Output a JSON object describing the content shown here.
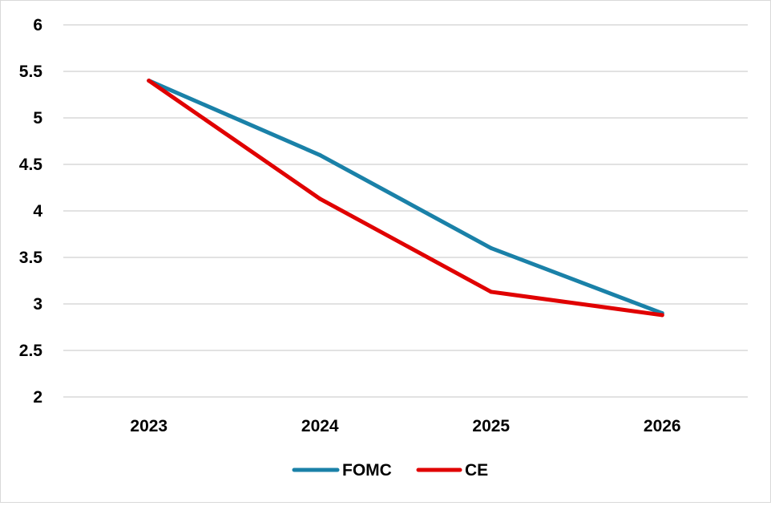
{
  "chart_data": {
    "type": "line",
    "title": "",
    "xlabel": "",
    "ylabel": "",
    "categories": [
      "2023",
      "2024",
      "2025",
      "2026"
    ],
    "ylim": [
      2,
      6
    ],
    "yticks": [
      "2",
      "2.5",
      "3",
      "3.5",
      "4",
      "4.5",
      "5",
      "5.5",
      "6"
    ],
    "grid": true,
    "legend_position": "bottom",
    "series": [
      {
        "name": "FOMC",
        "color": "#1a81a8",
        "values": [
          5.4,
          4.6,
          3.6,
          2.9
        ]
      },
      {
        "name": "CE",
        "color": "#e00000",
        "values": [
          5.4,
          4.13,
          3.13,
          2.88
        ]
      }
    ]
  }
}
